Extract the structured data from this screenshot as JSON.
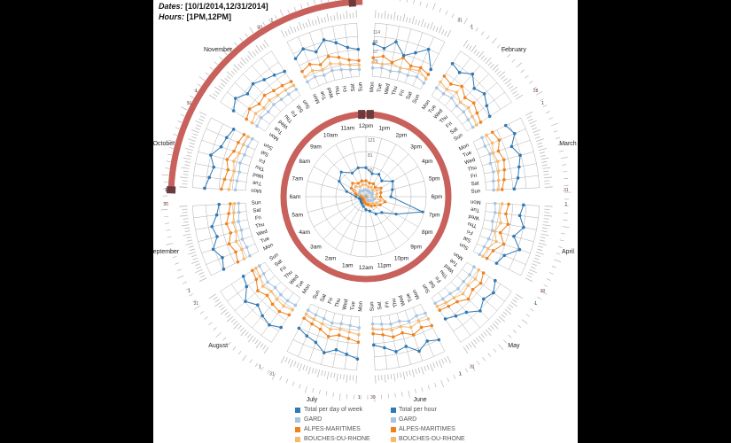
{
  "header": {
    "dates_label": "Dates:",
    "dates_value": "[10/1/2014,12/31/2014]",
    "hours_label": "Hours:",
    "hours_value": "[1PM,12PM]"
  },
  "colors": {
    "total": "#2f79b4",
    "gard": "#a9c4e0",
    "alpes": "#f0821e",
    "bouches": "#f7b96e",
    "band": "#c8605c",
    "handle": "#6b3a3a",
    "grid": "#999999"
  },
  "legend": {
    "left": [
      {
        "label": "Total per day of week",
        "color": "#2f79b4",
        "shape": "square"
      },
      {
        "label": "GARD",
        "color": "#a9c4e0",
        "shape": "square"
      },
      {
        "label": "ALPES-MARITIMES",
        "color": "#f0821e",
        "shape": "square"
      },
      {
        "label": "BOUCHES-DU-RHONE",
        "color": "#f7b96e",
        "shape": "square"
      }
    ],
    "right": [
      {
        "label": "Total per hour",
        "color": "#2f79b4",
        "shape": "square"
      },
      {
        "label": "GARD",
        "color": "#a9c4e0",
        "shape": "square"
      },
      {
        "label": "ALPES-MARITIMES",
        "color": "#f0821e",
        "shape": "square"
      },
      {
        "label": "BOUCHES-DU-RHONE",
        "color": "#f7b96e",
        "shape": "square"
      }
    ]
  },
  "chart_data": {
    "type": "radial",
    "months": [
      "January",
      "February",
      "March",
      "April",
      "May",
      "June",
      "July",
      "August",
      "September",
      "October",
      "November",
      "December"
    ],
    "month_start_labels": [
      "1",
      "1",
      "1",
      "1",
      "1",
      "1",
      "1",
      "1",
      "1",
      "1",
      "1",
      "1"
    ],
    "month_end_labels": [
      "31",
      "28",
      "31",
      "30",
      "31",
      "30",
      "31",
      "31",
      "30",
      "31",
      "30",
      "31"
    ],
    "weekdays": [
      "Mon",
      "Tue",
      "Wed",
      "Thu",
      "Fri",
      "Sat",
      "Sun"
    ],
    "hours": [
      "12pm",
      "1pm",
      "2pm",
      "3pm",
      "4pm",
      "5pm",
      "6pm",
      "7pm",
      "8pm",
      "9pm",
      "10pm",
      "11pm",
      "12am",
      "1am",
      "2am",
      "3am",
      "4am",
      "5am",
      "6am",
      "7am",
      "8am",
      "9am",
      "10am",
      "11am"
    ],
    "month_scale_ticks": [
      "114",
      "86",
      "57",
      "29"
    ],
    "hour_scale_ticks": [
      "121",
      "81",
      "40"
    ],
    "selected_dates": [
      "10/1/2014",
      "12/31/2014"
    ],
    "selected_hours": [
      "1PM",
      "12PM"
    ],
    "series_names": [
      "Total per day of week",
      "GARD",
      "ALPES-MARITIMES",
      "BOUCHES-DU-RHONE"
    ],
    "weekday_values": {
      "January": {
        "total": [
          70,
          62,
          80,
          55,
          68,
          85,
          48
        ],
        "gard": [
          18,
          20,
          16,
          19,
          17,
          21,
          15
        ],
        "alpes": [
          40,
          45,
          35,
          50,
          38,
          42,
          36
        ],
        "bouches": [
          30,
          28,
          33,
          27,
          31,
          35,
          25
        ]
      },
      "February": {
        "total": [
          82,
          75,
          90,
          70,
          78,
          66,
          58
        ],
        "gard": [
          20,
          18,
          22,
          17,
          19,
          16,
          15
        ],
        "alpes": [
          50,
          44,
          55,
          42,
          48,
          40,
          35
        ],
        "bouches": [
          35,
          30,
          38,
          28,
          33,
          27,
          24
        ]
      },
      "March": {
        "total": [
          78,
          88,
          72,
          84,
          76,
          70,
          60
        ],
        "gard": [
          21,
          19,
          23,
          18,
          20,
          17,
          16
        ],
        "alpes": [
          46,
          52,
          42,
          48,
          44,
          40,
          34
        ],
        "bouches": [
          32,
          36,
          30,
          34,
          31,
          28,
          25
        ]
      },
      "April": {
        "total": [
          80,
          74,
          86,
          70,
          90,
          64,
          56
        ],
        "gard": [
          19,
          21,
          18,
          22,
          20,
          17,
          15
        ],
        "alpes": [
          48,
          44,
          52,
          40,
          54,
          38,
          33
        ],
        "bouches": [
          34,
          30,
          36,
          28,
          37,
          26,
          23
        ]
      },
      "May": {
        "total": [
          72,
          84,
          76,
          88,
          70,
          62,
          54
        ],
        "gard": [
          18,
          20,
          19,
          21,
          17,
          16,
          14
        ],
        "alpes": [
          42,
          50,
          45,
          52,
          40,
          36,
          32
        ],
        "bouches": [
          30,
          35,
          32,
          36,
          29,
          26,
          22
        ]
      },
      "June": {
        "total": [
          86,
          78,
          92,
          74,
          80,
          68,
          60
        ],
        "gard": [
          22,
          19,
          24,
          18,
          20,
          17,
          15
        ],
        "alpes": [
          52,
          46,
          55,
          44,
          48,
          40,
          36
        ],
        "bouches": [
          36,
          32,
          38,
          30,
          33,
          28,
          25
        ]
      },
      "July": {
        "total": [
          90,
          82,
          76,
          88,
          72,
          66,
          58
        ],
        "gard": [
          23,
          20,
          19,
          22,
          18,
          17,
          15
        ],
        "alpes": [
          54,
          48,
          44,
          52,
          42,
          38,
          34
        ],
        "bouches": [
          38,
          34,
          31,
          36,
          30,
          27,
          24
        ]
      },
      "August": {
        "total": [
          76,
          86,
          80,
          70,
          84,
          62,
          55
        ],
        "gard": [
          19,
          21,
          20,
          17,
          21,
          16,
          14
        ],
        "alpes": [
          44,
          50,
          47,
          41,
          49,
          36,
          32
        ],
        "bouches": [
          31,
          35,
          33,
          29,
          34,
          26,
          23
        ]
      },
      "September": {
        "total": [
          84,
          76,
          88,
          72,
          78,
          64,
          57
        ],
        "gard": [
          21,
          19,
          22,
          18,
          20,
          16,
          15
        ],
        "alpes": [
          50,
          45,
          52,
          42,
          46,
          38,
          33
        ],
        "bouches": [
          35,
          31,
          36,
          30,
          32,
          27,
          24
        ]
      },
      "October": {
        "total": [
          88,
          80,
          74,
          86,
          70,
          66,
          60
        ],
        "gard": [
          22,
          20,
          18,
          21,
          17,
          17,
          15
        ],
        "alpes": [
          52,
          47,
          43,
          50,
          41,
          39,
          35
        ],
        "bouches": [
          36,
          33,
          30,
          35,
          29,
          27,
          25
        ]
      },
      "November": {
        "total": [
          80,
          92,
          78,
          84,
          74,
          68,
          62
        ],
        "gard": [
          20,
          23,
          19,
          21,
          18,
          17,
          16
        ],
        "alpes": [
          47,
          54,
          45,
          49,
          43,
          40,
          36
        ],
        "bouches": [
          33,
          38,
          32,
          34,
          30,
          28,
          26
        ]
      },
      "December": {
        "total": [
          74,
          86,
          70,
          90,
          78,
          64,
          58
        ],
        "gard": [
          18,
          21,
          17,
          22,
          19,
          16,
          15
        ],
        "alpes": [
          43,
          50,
          41,
          53,
          46,
          37,
          34
        ],
        "bouches": [
          30,
          35,
          29,
          37,
          32,
          26,
          24
        ]
      }
    },
    "hour_values": {
      "total": [
        58,
        48,
        52,
        45,
        62,
        55,
        50,
        118,
        70,
        45,
        40,
        30,
        26,
        20,
        16,
        14,
        12,
        14,
        20,
        40,
        62,
        70,
        55,
        60
      ],
      "gard": [
        14,
        12,
        13,
        11,
        15,
        13,
        12,
        18,
        15,
        11,
        10,
        8,
        7,
        6,
        5,
        4,
        4,
        5,
        6,
        10,
        15,
        17,
        13,
        14
      ],
      "alpes": [
        32,
        28,
        30,
        26,
        35,
        31,
        29,
        40,
        33,
        25,
        22,
        17,
        15,
        12,
        9,
        8,
        7,
        8,
        11,
        22,
        34,
        38,
        31,
        33
      ],
      "bouches": [
        24,
        20,
        22,
        19,
        26,
        23,
        21,
        30,
        25,
        19,
        17,
        13,
        11,
        9,
        7,
        6,
        5,
        6,
        8,
        17,
        26,
        29,
        23,
        25
      ]
    }
  }
}
